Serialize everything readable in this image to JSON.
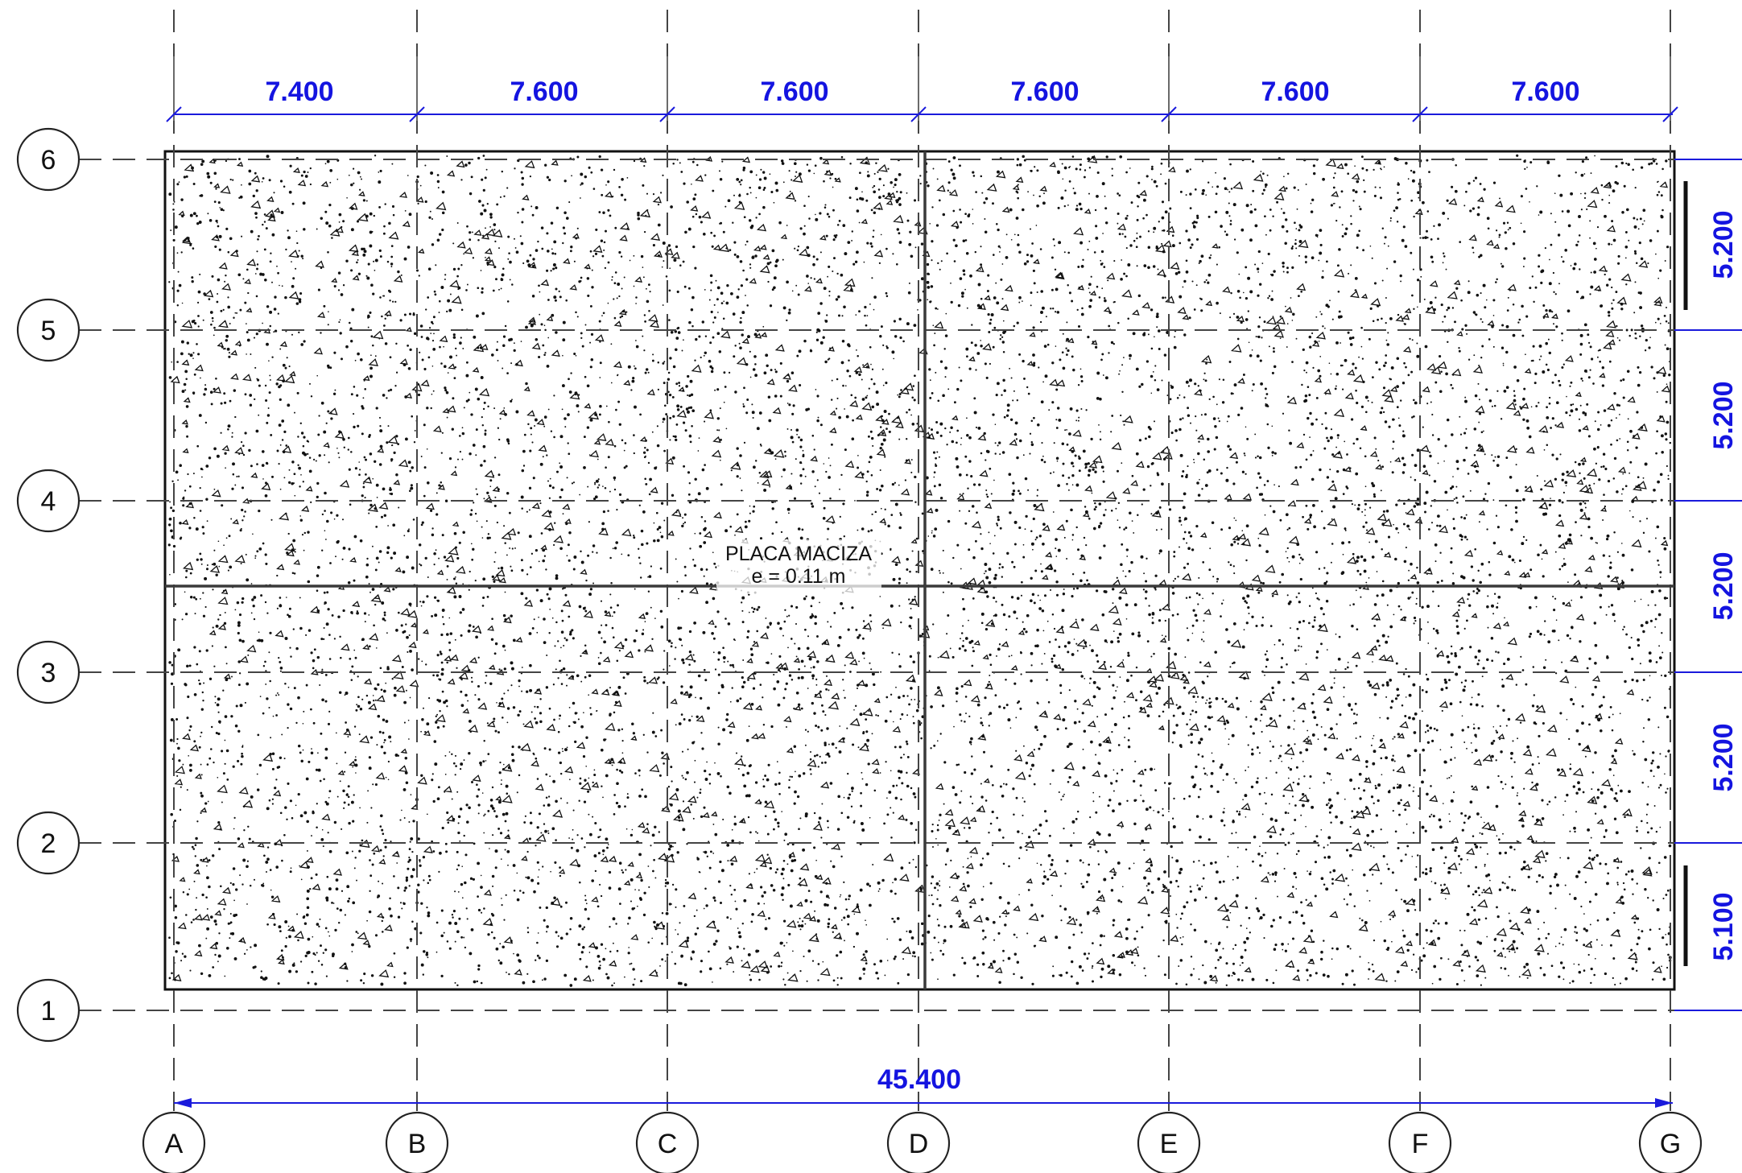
{
  "drawing": {
    "axes_x": [
      "A",
      "B",
      "C",
      "D",
      "E",
      "F",
      "G"
    ],
    "axes_y": [
      "1",
      "2",
      "3",
      "4",
      "5",
      "6"
    ],
    "dims_x": [
      "7.400",
      "7.600",
      "7.600",
      "7.600",
      "7.600",
      "7.600"
    ],
    "dims_y": [
      "5.100",
      "5.200",
      "5.200",
      "5.200",
      "5.200"
    ],
    "total_x": "45.400",
    "slab_label": {
      "line1": "PLACA MACIZA",
      "line2": "e = 0.11 m"
    },
    "colors": {
      "dimension": "#1414e0",
      "lines": "#111111"
    }
  }
}
